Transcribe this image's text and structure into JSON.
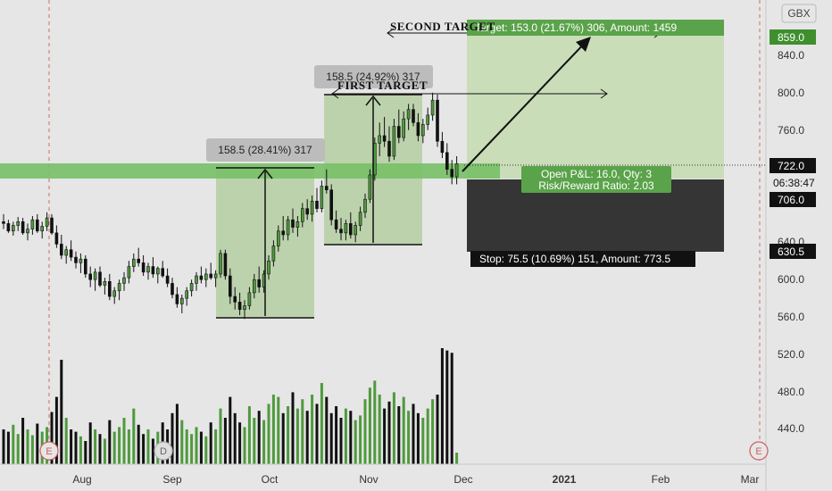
{
  "colors": {
    "background": "#e6e6e6",
    "up": "#4f9a3d",
    "down": "#111111",
    "target_zone": "#c7dcb6",
    "stop_zone": "#353535",
    "measure_zone": "#b7cfa6",
    "support_band": "#77c066",
    "price_badge_up": "#3f8f2f",
    "price_badge_dark": "#111111",
    "event_circle": "#cf5f5f"
  },
  "header": {
    "currency": "GBX"
  },
  "price_axis": {
    "ticks": [
      "859.0",
      "840.0",
      "800.0",
      "760.0",
      "722.0",
      "706.0",
      "640.0",
      "630.5",
      "600.0",
      "560.0",
      "520.0",
      "480.0",
      "440.0"
    ],
    "badge_target": "859.0",
    "badge_last": "722.0",
    "badge_countdown": "06:38:47",
    "badge_entry": "706.0",
    "badge_stop": "630.5"
  },
  "time_axis": {
    "labels": [
      "Aug",
      "Sep",
      "Oct",
      "Nov",
      "Dec",
      "2021",
      "Feb",
      "Mar"
    ]
  },
  "events": [
    "E",
    "D",
    "E"
  ],
  "annotations": {
    "measure1_label": "158.5 (28.41%) 317",
    "measure2_label": "158.5 (24.92%) 317",
    "first_target": "FIRST TARGET",
    "second_target": "SECOND TARGET",
    "target_label": "Target: 153.0 (21.67%) 306, Amount: 1459",
    "pnl_line1": "Open P&L: 16.0, Qty: 3",
    "pnl_line2": "Risk/Reward Ratio: 2.03",
    "stop_label": "Stop: 75.5 (10.69%) 151, Amount: 773.5"
  },
  "chart_data": {
    "type": "candlestick",
    "y_unit": "GBX",
    "ylim": [
      405,
      878
    ],
    "x_range": [
      "2020-06-27",
      "2021-03-06"
    ],
    "candles": [
      [
        660,
        668,
        652,
        658
      ],
      [
        658,
        662,
        648,
        650
      ],
      [
        650,
        660,
        645,
        656
      ],
      [
        656,
        665,
        650,
        660
      ],
      [
        660,
        664,
        646,
        648
      ],
      [
        648,
        658,
        640,
        652
      ],
      [
        652,
        666,
        646,
        662
      ],
      [
        662,
        668,
        648,
        650
      ],
      [
        650,
        660,
        642,
        655
      ],
      [
        655,
        670,
        650,
        664
      ],
      [
        664,
        668,
        646,
        648
      ],
      [
        648,
        656,
        632,
        636
      ],
      [
        636,
        646,
        620,
        624
      ],
      [
        624,
        634,
        615,
        630
      ],
      [
        630,
        640,
        618,
        622
      ],
      [
        622,
        628,
        610,
        616
      ],
      [
        616,
        626,
        605,
        620
      ],
      [
        620,
        624,
        600,
        604
      ],
      [
        604,
        612,
        590,
        598
      ],
      [
        598,
        610,
        586,
        606
      ],
      [
        606,
        612,
        590,
        592
      ],
      [
        592,
        600,
        582,
        596
      ],
      [
        596,
        604,
        576,
        580
      ],
      [
        580,
        590,
        572,
        586
      ],
      [
        586,
        598,
        576,
        594
      ],
      [
        594,
        606,
        586,
        600
      ],
      [
        600,
        618,
        594,
        612
      ],
      [
        612,
        626,
        606,
        620
      ],
      [
        620,
        632,
        612,
        616
      ],
      [
        616,
        624,
        602,
        606
      ],
      [
        606,
        616,
        598,
        612
      ],
      [
        612,
        622,
        600,
        604
      ],
      [
        604,
        612,
        594,
        610
      ],
      [
        610,
        618,
        600,
        602
      ],
      [
        602,
        610,
        590,
        594
      ],
      [
        594,
        600,
        578,
        582
      ],
      [
        582,
        590,
        568,
        572
      ],
      [
        572,
        582,
        562,
        578
      ],
      [
        578,
        590,
        570,
        586
      ],
      [
        586,
        598,
        580,
        594
      ],
      [
        594,
        606,
        586,
        602
      ],
      [
        602,
        612,
        594,
        598
      ],
      [
        598,
        610,
        590,
        604
      ],
      [
        604,
        616,
        598,
        600
      ],
      [
        600,
        608,
        590,
        604
      ],
      [
        604,
        630,
        600,
        626
      ],
      [
        626,
        630,
        598,
        602
      ],
      [
        602,
        610,
        572,
        580
      ],
      [
        580,
        590,
        566,
        574
      ],
      [
        574,
        584,
        560,
        566
      ],
      [
        566,
        576,
        556,
        570
      ],
      [
        570,
        590,
        566,
        584
      ],
      [
        584,
        604,
        578,
        598
      ],
      [
        598,
        612,
        584,
        590
      ],
      [
        590,
        608,
        584,
        604
      ],
      [
        604,
        624,
        598,
        618
      ],
      [
        618,
        640,
        612,
        634
      ],
      [
        634,
        656,
        628,
        650
      ],
      [
        650,
        666,
        640,
        646
      ],
      [
        646,
        666,
        640,
        662
      ],
      [
        662,
        674,
        648,
        654
      ],
      [
        654,
        666,
        644,
        660
      ],
      [
        660,
        680,
        654,
        674
      ],
      [
        674,
        684,
        662,
        668
      ],
      [
        668,
        688,
        660,
        682
      ],
      [
        682,
        696,
        670,
        674
      ],
      [
        674,
        704,
        670,
        698
      ],
      [
        698,
        716,
        690,
        694
      ],
      [
        694,
        700,
        656,
        662
      ],
      [
        662,
        672,
        648,
        652
      ],
      [
        652,
        664,
        640,
        648
      ],
      [
        648,
        662,
        640,
        658
      ],
      [
        658,
        670,
        642,
        646
      ],
      [
        646,
        660,
        638,
        656
      ],
      [
        656,
        676,
        650,
        670
      ],
      [
        670,
        690,
        664,
        684
      ],
      [
        684,
        716,
        680,
        710
      ],
      [
        710,
        750,
        704,
        744
      ],
      [
        744,
        766,
        730,
        752
      ],
      [
        752,
        772,
        740,
        746
      ],
      [
        746,
        762,
        724,
        730
      ],
      [
        730,
        770,
        726,
        762
      ],
      [
        762,
        780,
        744,
        750
      ],
      [
        750,
        778,
        746,
        770
      ],
      [
        770,
        786,
        758,
        780
      ],
      [
        780,
        786,
        762,
        766
      ],
      [
        766,
        776,
        746,
        752
      ],
      [
        752,
        770,
        744,
        764
      ],
      [
        764,
        782,
        758,
        774
      ],
      [
        774,
        798,
        768,
        790
      ],
      [
        790,
        796,
        740,
        746
      ],
      [
        746,
        756,
        728,
        734
      ],
      [
        734,
        744,
        710,
        716
      ],
      [
        716,
        726,
        700,
        708
      ],
      [
        708,
        730,
        700,
        722
      ]
    ],
    "volume_unit": "relative",
    "volumes": [
      30,
      28,
      34,
      26,
      40,
      30,
      25,
      35,
      28,
      32,
      45,
      58,
      90,
      40,
      30,
      28,
      24,
      20,
      36,
      30,
      26,
      22,
      38,
      28,
      32,
      40,
      30,
      48,
      34,
      26,
      30,
      22,
      28,
      36,
      30,
      44,
      52,
      38,
      30,
      26,
      32,
      28,
      24,
      36,
      30,
      48,
      40,
      58,
      44,
      36,
      32,
      50,
      40,
      46,
      38,
      52,
      60,
      58,
      44,
      50,
      62,
      48,
      56,
      46,
      60,
      52,
      70,
      58,
      44,
      50,
      40,
      48,
      46,
      38,
      42,
      56,
      66,
      72,
      60,
      48,
      54,
      62,
      50,
      58,
      46,
      52,
      44,
      40,
      48,
      56,
      60,
      100,
      98,
      96,
      10
    ],
    "support_band": [
      706,
      722
    ],
    "measurements": [
      {
        "label": "158.5 (28.41%) 317",
        "from": 558,
        "to": 716.5
      },
      {
        "label": "158.5 (24.92%) 317",
        "from": 636,
        "to": 794.5
      }
    ],
    "position": {
      "side": "long",
      "entry": 706.0,
      "target": 859.0,
      "stop": 630.5,
      "last": 722.0,
      "qty": 3,
      "open_pnl": 16.0,
      "risk_reward": 2.03,
      "target_amount": 1459,
      "stop_amount": 773.5
    },
    "targets": [
      {
        "name": "FIRST TARGET",
        "price": 798
      },
      {
        "name": "SECOND TARGET",
        "price": 859
      }
    ],
    "grid": false
  }
}
